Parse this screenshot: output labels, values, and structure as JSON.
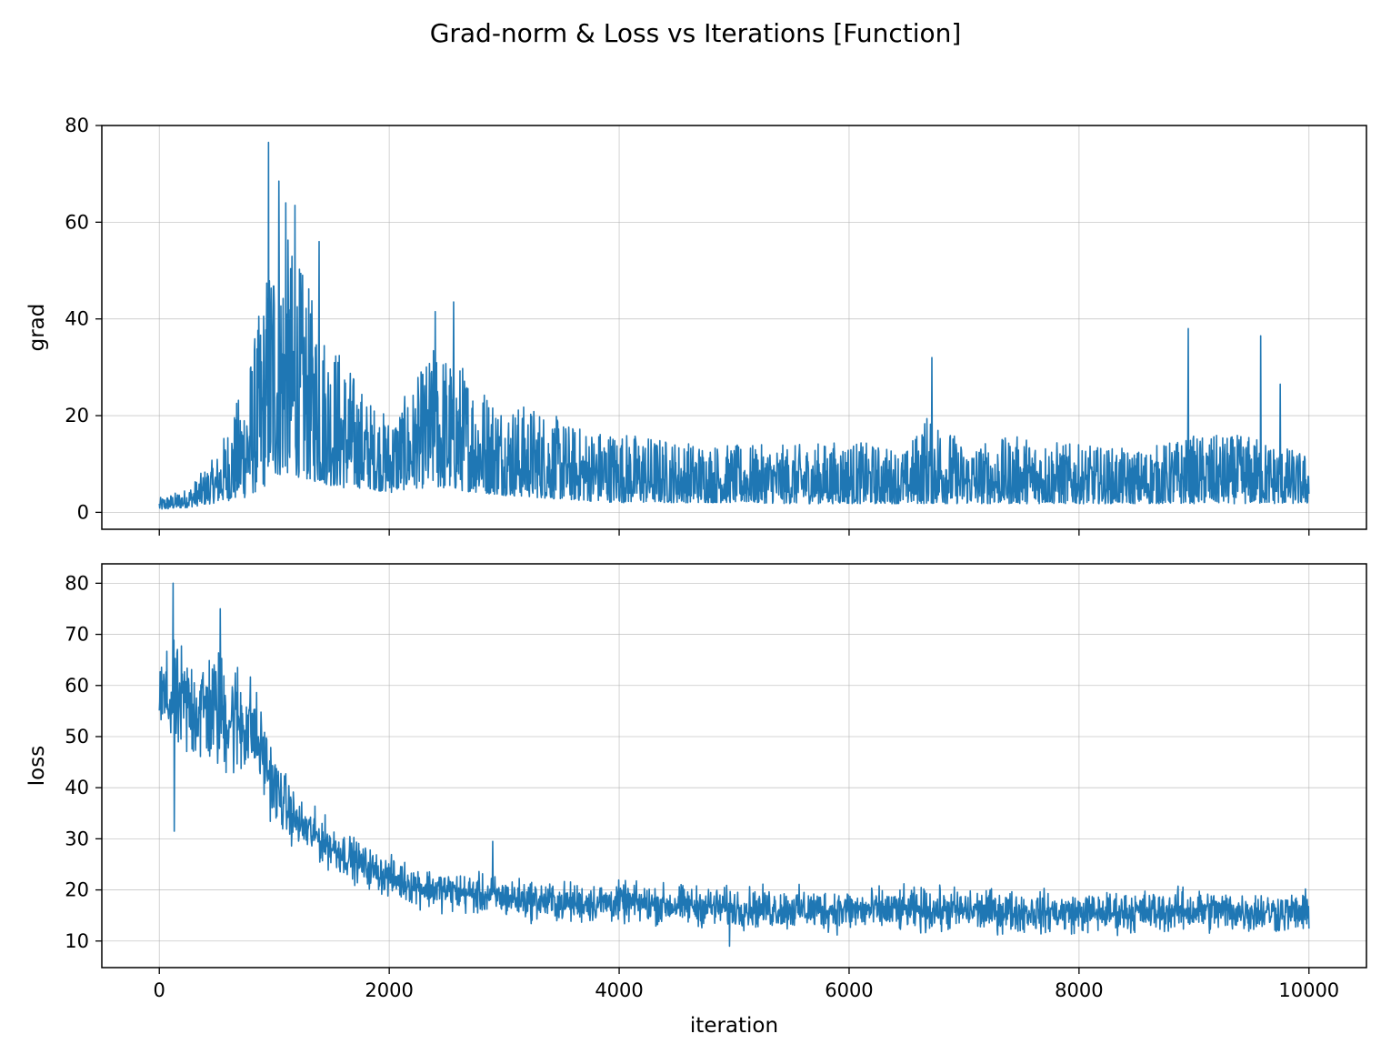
{
  "figure": {
    "title": "Grad-norm & Loss vs Iterations [Function]",
    "line_color": "#1f77b4",
    "grid_color": "#b0b0b0"
  },
  "chart_data": [
    {
      "type": "line",
      "title": "",
      "xlabel": "",
      "ylabel": "grad",
      "xlim": [
        -500,
        10500
      ],
      "ylim": [
        -3.5,
        80
      ],
      "xticks": [
        0,
        2000,
        4000,
        6000,
        8000,
        10000
      ],
      "xtick_labels_shown": false,
      "yticks": [
        0,
        20,
        40,
        60,
        80
      ],
      "ytick_labels": [
        "0",
        "20",
        "40",
        "60",
        "80"
      ],
      "grid": true,
      "series": [
        {
          "color": "#1f77b4",
          "x": [
            0,
            250,
            500,
            750,
            900,
            1000,
            1100,
            1250,
            1400,
            1600,
            1800,
            2000,
            2200,
            2400,
            2600,
            2800,
            3000,
            3300,
            3600,
            4000,
            4500,
            5000,
            5500,
            6000,
            6500,
            6700,
            7000,
            7500,
            8000,
            8500,
            9000,
            9500,
            10000
          ],
          "upper": [
            3,
            5,
            12,
            28,
            45,
            62,
            58,
            50,
            40,
            33,
            24,
            20,
            26,
            35,
            32,
            27,
            23,
            22,
            18,
            17,
            15,
            14,
            14,
            15,
            13,
            22,
            14,
            16,
            14,
            13,
            16,
            16,
            12
          ],
          "lower": [
            0.5,
            1,
            2,
            3,
            5,
            7,
            8,
            7,
            6,
            5,
            5,
            4,
            5,
            5,
            4.5,
            4,
            3.5,
            3,
            2.5,
            2,
            2,
            2,
            1.8,
            1.8,
            1.8,
            1.8,
            1.8,
            1.8,
            1.8,
            1.8,
            1.8,
            1.8,
            1.8
          ],
          "spikes": [
            [
              950,
              76.5
            ],
            [
              1040,
              68.5
            ],
            [
              1100,
              64
            ],
            [
              1180,
              63.5
            ],
            [
              1390,
              56
            ],
            [
              2400,
              41.5
            ],
            [
              2560,
              43.5
            ],
            [
              6720,
              32
            ],
            [
              8950,
              38
            ],
            [
              9580,
              36.5
            ],
            [
              9750,
              26.5
            ]
          ]
        }
      ]
    },
    {
      "type": "line",
      "title": "",
      "xlabel": "iteration",
      "ylabel": "loss",
      "xlim": [
        -500,
        10500
      ],
      "ylim": [
        4.8,
        83.8
      ],
      "xticks": [
        0,
        2000,
        4000,
        6000,
        8000,
        10000
      ],
      "xtick_labels": [
        "0",
        "2000",
        "4000",
        "6000",
        "8000",
        "10000"
      ],
      "yticks": [
        10,
        20,
        30,
        40,
        50,
        60,
        70,
        80
      ],
      "ytick_labels": [
        "10",
        "20",
        "30",
        "40",
        "50",
        "60",
        "70",
        "80"
      ],
      "grid": true,
      "series": [
        {
          "color": "#1f77b4",
          "x": [
            0,
            200,
            500,
            700,
            800,
            900,
            1000,
            1200,
            1500,
            1800,
            2000,
            2300,
            2600,
            3000,
            3500,
            4000,
            5000,
            6000,
            7000,
            8000,
            9000,
            10000
          ],
          "upper": [
            70,
            72,
            72,
            70,
            66,
            58,
            50,
            40,
            35,
            30,
            28,
            26,
            25,
            24,
            23,
            23,
            22,
            22,
            22,
            21,
            22,
            21
          ],
          "lower": [
            45,
            40,
            38,
            36,
            38,
            35,
            30,
            26,
            22,
            19,
            17,
            15,
            14,
            13,
            12,
            12,
            11,
            10,
            10,
            10,
            10,
            10
          ],
          "spikes": [
            [
              120,
              80
            ],
            [
              130,
              31.5
            ],
            [
              530,
              75
            ],
            [
              2900,
              29.5
            ],
            [
              4960,
              9
            ]
          ]
        }
      ]
    }
  ]
}
